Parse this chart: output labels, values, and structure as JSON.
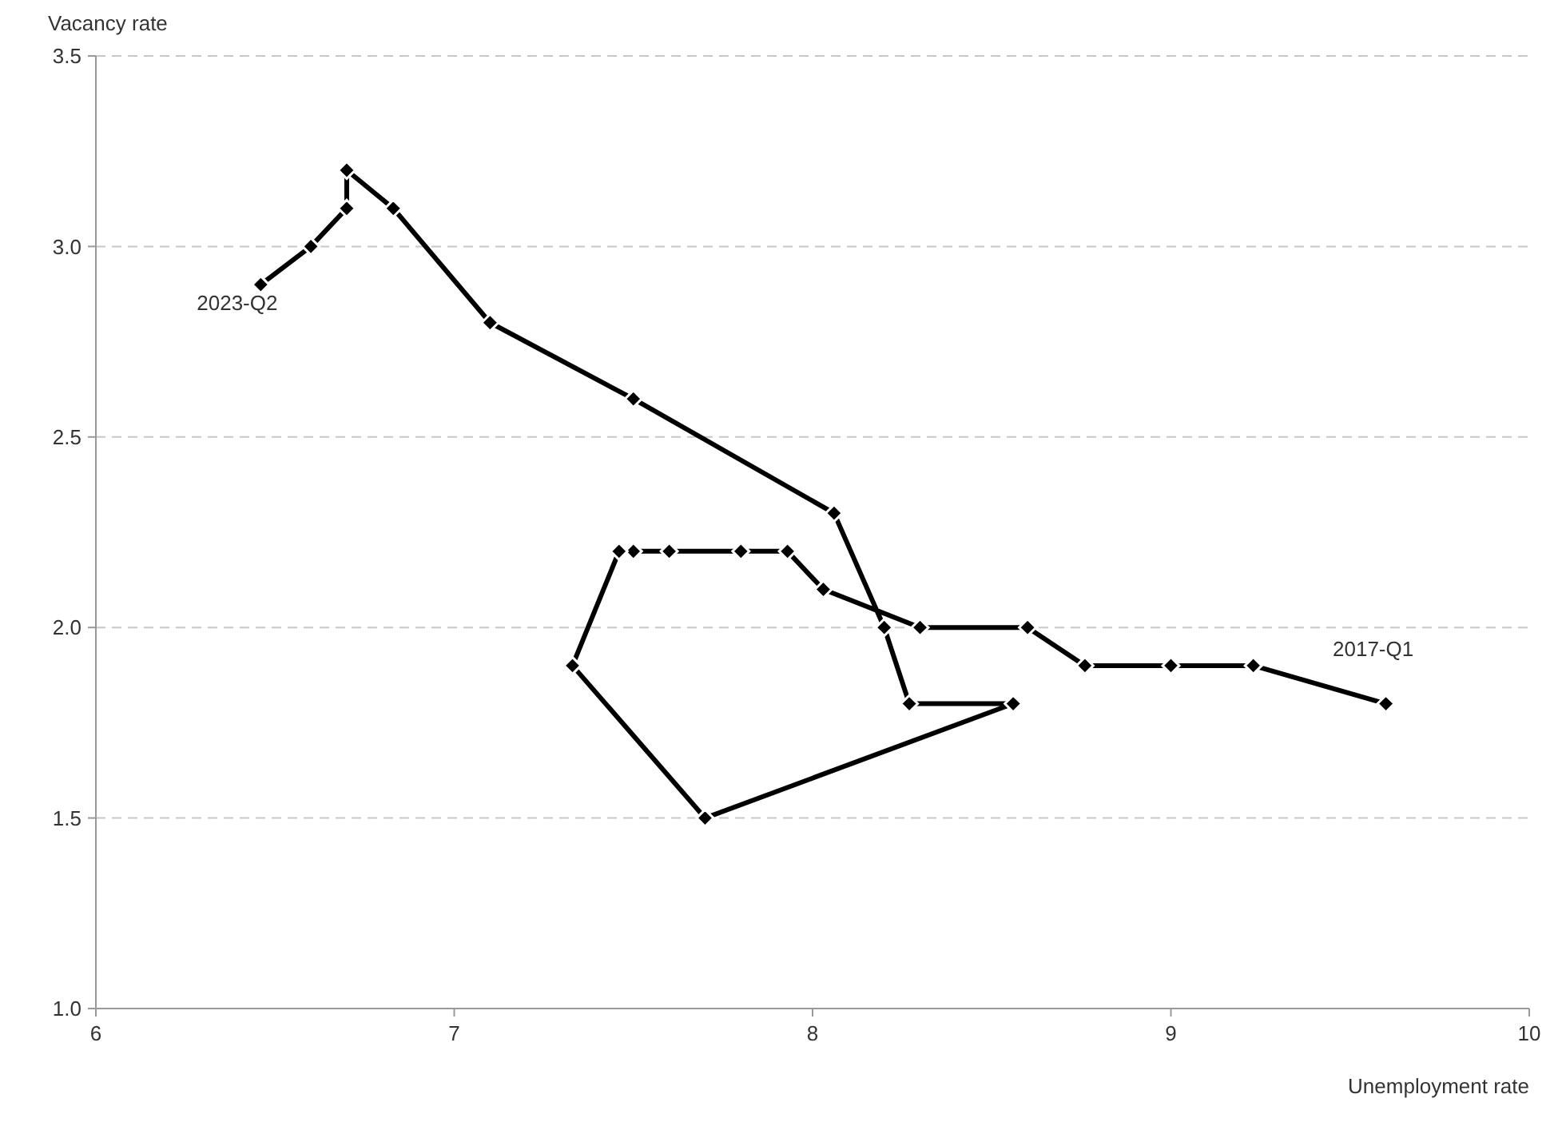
{
  "chart_data": {
    "type": "line",
    "xlabel": "Unemployment rate",
    "ylabel": "Vacancy rate",
    "series": [
      {
        "color": "#000000",
        "x": [
          9.6,
          9.23,
          9.0,
          8.76,
          8.6,
          8.3,
          8.03,
          7.93,
          7.8,
          7.6,
          7.5,
          7.46,
          7.33,
          7.7,
          8.56,
          8.27,
          8.2,
          8.06,
          7.5,
          7.1,
          6.83,
          6.7,
          6.7,
          6.6,
          6.46
        ],
        "values": [
          1.8,
          1.9,
          1.9,
          1.9,
          2.0,
          2.0,
          2.1,
          2.2,
          2.2,
          2.2,
          2.2,
          2.2,
          1.9,
          1.5,
          1.8,
          1.8,
          2.0,
          2.3,
          2.6,
          2.8,
          3.1,
          3.2,
          3.1,
          3.0,
          2.9
        ]
      }
    ],
    "xlim": [
      6,
      10
    ],
    "xticks": [
      6,
      7,
      8,
      9,
      10
    ],
    "ylim": [
      1.0,
      3.5
    ],
    "yticks": [
      {
        "value": 1.0,
        "label": "1.0"
      },
      {
        "value": 1.5,
        "label": "1.5"
      },
      {
        "value": 2.0,
        "label": "2.0"
      },
      {
        "value": 2.5,
        "label": "2.5"
      },
      {
        "value": 3.0,
        "label": "3.0"
      },
      {
        "value": 3.5,
        "label": "3.5"
      }
    ],
    "grid": "y",
    "marker": "diamond",
    "line_style": "solid",
    "annotations": [
      {
        "text": "2017-Q1",
        "x": 9.6,
        "y": 1.8
      },
      {
        "text": "2023-Q2",
        "x": 6.46,
        "y": 2.9
      }
    ]
  }
}
